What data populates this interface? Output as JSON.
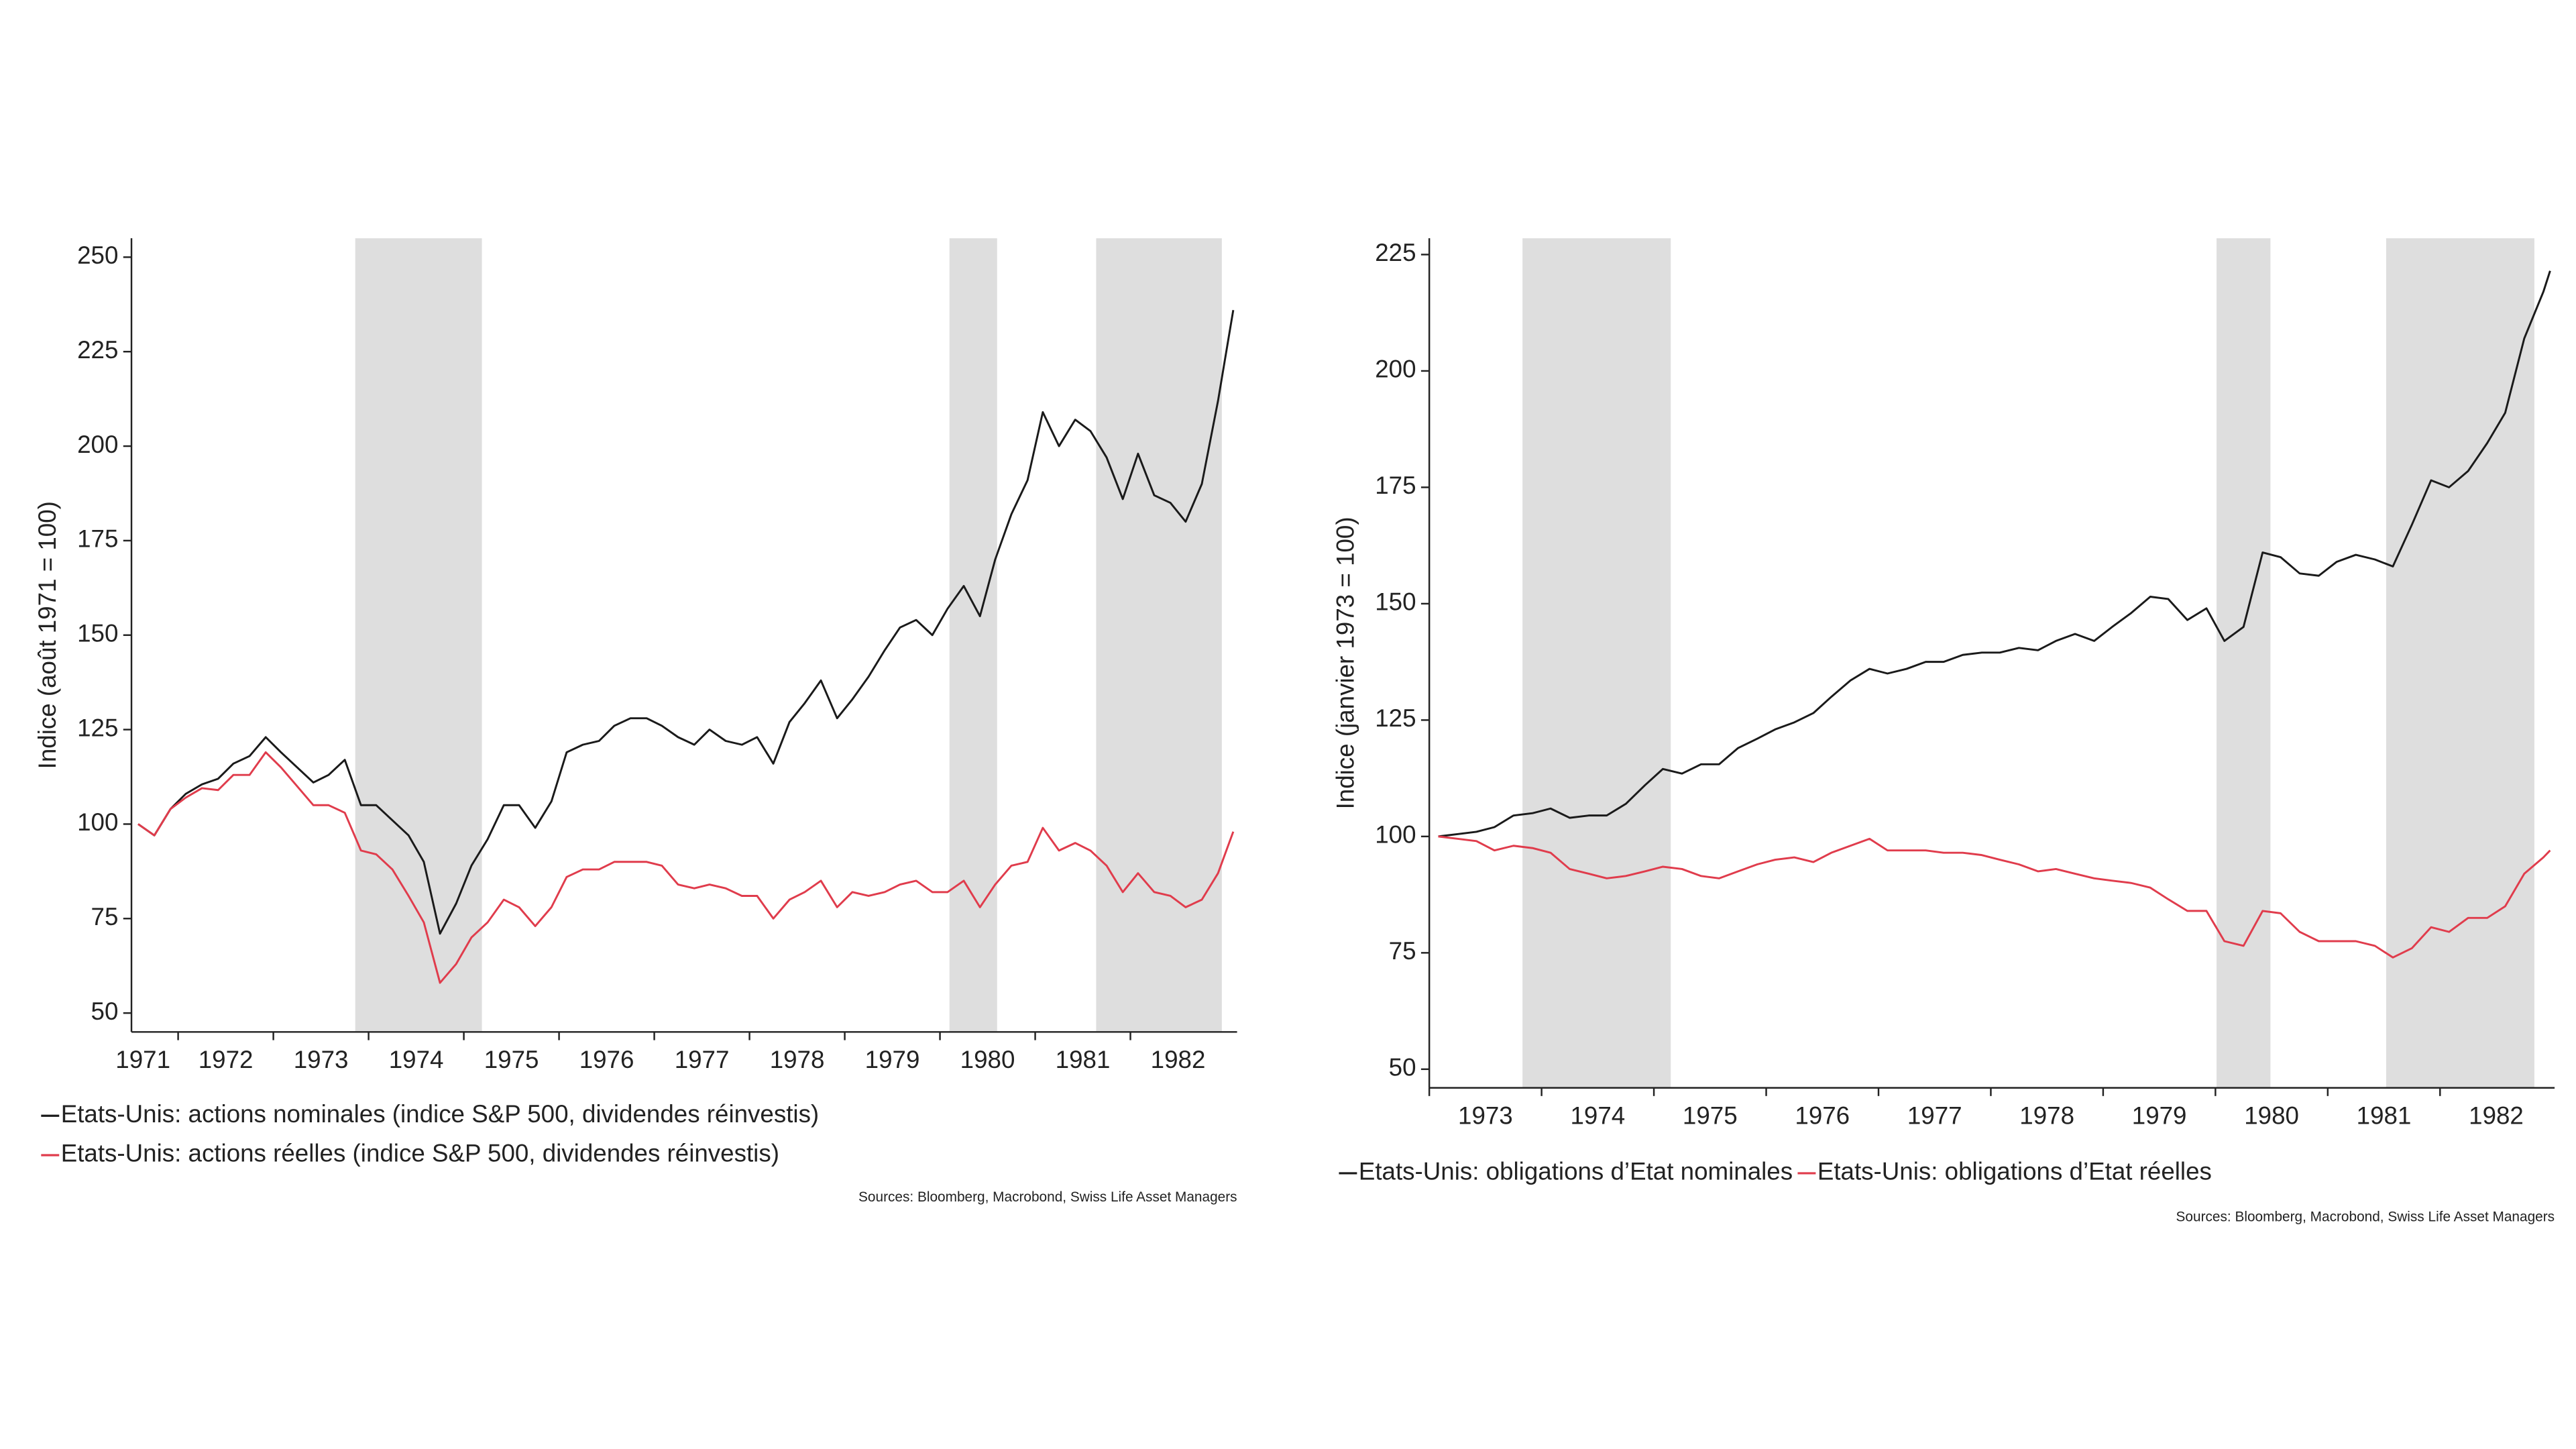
{
  "chart_data": [
    {
      "type": "line",
      "y_label": "Indice (août 1971 = 100)",
      "source": "Sources: Bloomberg, Macrobond, Swiss Life Asset Managers",
      "xlim": [
        1971.51,
        1983.12
      ],
      "ylim": [
        45,
        255
      ],
      "xticks": [
        1971,
        1972,
        1973,
        1974,
        1975,
        1976,
        1977,
        1978,
        1979,
        1980,
        1981,
        1982
      ],
      "yticks": [
        50,
        75,
        100,
        125,
        150,
        175,
        200,
        225,
        250
      ],
      "shaded_ranges": [
        [
          1973.86,
          1975.19
        ],
        [
          1980.1,
          1980.6
        ],
        [
          1981.64,
          1982.96
        ]
      ],
      "shade_color": "#dedede",
      "x": [
        1971.58,
        1971.75,
        1971.92,
        1972.08,
        1972.25,
        1972.42,
        1972.58,
        1972.75,
        1972.92,
        1973.08,
        1973.25,
        1973.42,
        1973.58,
        1973.75,
        1973.92,
        1974.08,
        1974.25,
        1974.42,
        1974.58,
        1974.75,
        1974.92,
        1975.08,
        1975.25,
        1975.42,
        1975.58,
        1975.75,
        1975.92,
        1976.08,
        1976.25,
        1976.42,
        1976.58,
        1976.75,
        1976.92,
        1977.08,
        1977.25,
        1977.42,
        1977.58,
        1977.75,
        1977.92,
        1978.08,
        1978.25,
        1978.42,
        1978.58,
        1978.75,
        1978.92,
        1979.08,
        1979.25,
        1979.42,
        1979.58,
        1979.75,
        1979.92,
        1980.08,
        1980.25,
        1980.42,
        1980.58,
        1980.75,
        1980.92,
        1981.08,
        1981.25,
        1981.42,
        1981.58,
        1981.75,
        1981.92,
        1982.08,
        1982.25,
        1982.42,
        1982.58,
        1982.75,
        1982.92,
        1983.08
      ],
      "series": [
        {
          "name": "Etats-Unis: actions nominales (indice S&P 500, dividendes réinvestis)",
          "color": "#1a1a1a",
          "values": [
            100,
            97,
            104,
            108,
            110.5,
            112,
            116,
            118,
            123,
            119,
            115,
            111,
            113,
            117,
            105,
            105,
            101,
            97,
            90,
            71,
            79,
            89,
            96,
            105,
            105,
            99,
            106,
            119,
            121,
            122,
            126,
            128,
            128,
            126,
            123,
            121,
            125,
            122,
            121,
            123,
            116,
            127,
            132,
            138,
            128,
            133,
            139,
            146,
            152,
            154,
            150,
            157,
            163,
            155,
            170,
            182,
            191,
            209,
            200,
            207,
            204,
            197,
            186,
            198,
            187,
            185,
            180,
            190,
            212,
            236
          ]
        },
        {
          "name": "Etats-Unis: actions réelles (indice S&P 500, dividendes réinvestis)",
          "color": "#e03c4c",
          "values": [
            100,
            97,
            104,
            107,
            109.5,
            109,
            113,
            113,
            119,
            115,
            110,
            105,
            105,
            103,
            93,
            92,
            88,
            81,
            74,
            58,
            63,
            70,
            74,
            80,
            78,
            73,
            78,
            86,
            88,
            88,
            90,
            90,
            90,
            89,
            84,
            83,
            84,
            83,
            81,
            81,
            75,
            80,
            82,
            85,
            78,
            82,
            81,
            82,
            84,
            85,
            82,
            82,
            85,
            78,
            84,
            89,
            90,
            99,
            93,
            95,
            93,
            89,
            82,
            87,
            82,
            81,
            78,
            80,
            87,
            98
          ]
        }
      ]
    },
    {
      "type": "line",
      "y_label": "Indice (janvier 1973 = 100)",
      "source": "Sources: Bloomberg, Macrobond, Swiss Life Asset Managers",
      "xlim": [
        1973.0,
        1983.02
      ],
      "ylim": [
        46,
        228.5
      ],
      "xticks": [
        1973,
        1974,
        1975,
        1976,
        1977,
        1978,
        1979,
        1980,
        1981,
        1982
      ],
      "yticks": [
        50,
        75,
        100,
        125,
        150,
        175,
        200,
        225
      ],
      "shaded_ranges": [
        [
          1973.83,
          1975.15
        ],
        [
          1980.01,
          1980.49
        ],
        [
          1981.52,
          1982.84
        ]
      ],
      "shade_color": "#dedede",
      "x": [
        1973.08,
        1973.25,
        1973.42,
        1973.58,
        1973.75,
        1973.92,
        1974.08,
        1974.25,
        1974.42,
        1974.58,
        1974.75,
        1974.92,
        1975.08,
        1975.25,
        1975.42,
        1975.58,
        1975.75,
        1975.92,
        1976.08,
        1976.25,
        1976.42,
        1976.58,
        1976.75,
        1976.92,
        1977.08,
        1977.25,
        1977.42,
        1977.58,
        1977.75,
        1977.92,
        1978.08,
        1978.25,
        1978.42,
        1978.58,
        1978.75,
        1978.92,
        1979.08,
        1979.25,
        1979.42,
        1979.58,
        1979.75,
        1979.92,
        1980.08,
        1980.25,
        1980.42,
        1980.58,
        1980.75,
        1980.92,
        1981.08,
        1981.25,
        1981.42,
        1981.58,
        1981.75,
        1981.92,
        1982.08,
        1982.25,
        1982.42,
        1982.58,
        1982.75,
        1982.92,
        1982.98
      ],
      "series": [
        {
          "name": "Etats-Unis: obligations d’Etat nominales",
          "color": "#1a1a1a",
          "values": [
            100,
            100.5,
            101,
            102,
            104.5,
            105,
            106,
            104,
            104.5,
            104.5,
            107,
            111,
            114.5,
            113.5,
            115.5,
            115.5,
            119,
            121,
            123,
            124.5,
            126.5,
            130,
            133.5,
            136,
            135,
            136,
            137.5,
            137.5,
            139,
            139.5,
            139.5,
            140.5,
            140,
            142,
            143.5,
            142,
            145,
            148,
            151.5,
            151,
            146.5,
            149,
            142,
            145,
            161,
            160,
            156.5,
            156,
            159,
            160.5,
            159.5,
            158,
            167,
            176.5,
            175,
            178.5,
            184.5,
            191,
            207,
            217,
            221.5
          ]
        },
        {
          "name": "Etats-Unis: obligations d’Etat réelles",
          "color": "#e03c4c",
          "values": [
            100,
            99.5,
            99,
            97,
            98,
            97.5,
            96.5,
            93,
            92,
            91,
            91.5,
            92.5,
            93.5,
            93,
            91.5,
            91,
            92.5,
            94,
            95,
            95.5,
            94.5,
            96.5,
            98,
            99.5,
            97,
            97,
            97,
            96.5,
            96.5,
            96,
            95,
            94,
            92.5,
            93,
            92,
            91,
            90.5,
            90,
            89,
            86.5,
            84,
            84,
            77.5,
            76.5,
            84,
            83.5,
            79.5,
            77.5,
            77.5,
            77.5,
            76.5,
            74,
            76,
            80.5,
            79.5,
            82.5,
            82.5,
            85,
            92,
            95.5,
            97
          ]
        }
      ]
    }
  ]
}
